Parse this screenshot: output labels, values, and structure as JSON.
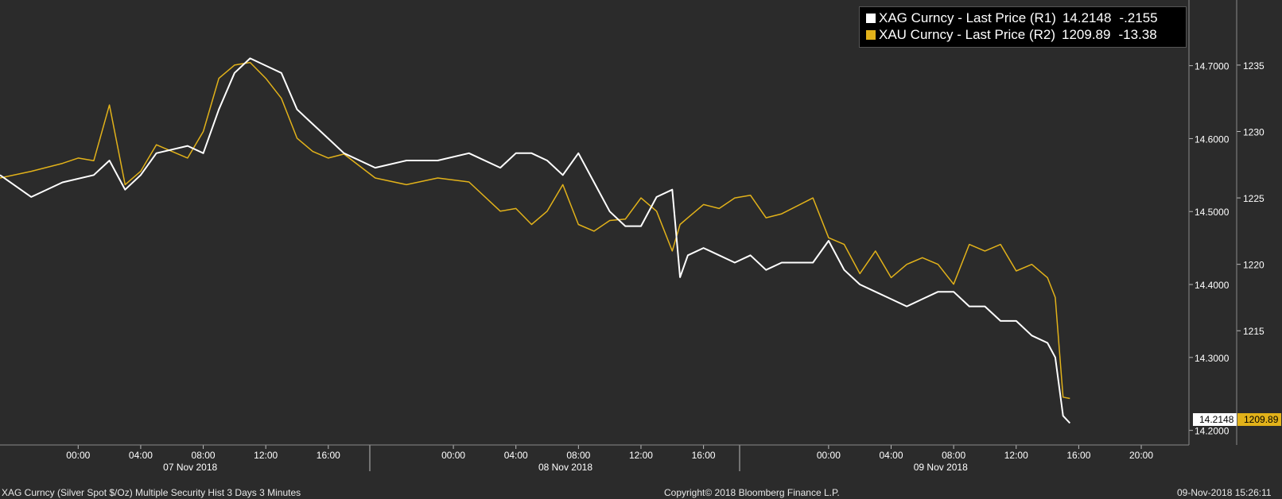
{
  "legend": {
    "series": [
      {
        "name": "XAG Curncy - Last Price (R1)",
        "last": "14.2148",
        "change": "-.2155",
        "color": "#ffffff"
      },
      {
        "name": "XAU Curncy - Last Price (R2)",
        "last": "1209.89",
        "change": "-13.38",
        "color": "#e2b21a"
      }
    ]
  },
  "last_tags": {
    "xag": "14.2148",
    "xau": "1209.89"
  },
  "footer": {
    "left": "XAG Curncy (Silver Spot  $/Oz) Multiple Security Hist   3 Days 3 Minutes",
    "center": "Copyright© 2018 Bloomberg Finance L.P.",
    "right": "09-Nov-2018 15:26:11"
  },
  "chart_data": {
    "type": "line",
    "x_axis": {
      "hour_ticks": [
        "00:00",
        "04:00",
        "08:00",
        "12:00",
        "16:00",
        "00:00",
        "04:00",
        "08:00",
        "12:00",
        "16:00",
        "00:00",
        "04:00",
        "08:00",
        "12:00",
        "16:00",
        "20:00"
      ],
      "date_labels": [
        "07 Nov 2018",
        "08 Nov 2018",
        "09 Nov 2018"
      ],
      "range": [
        "2018-11-06 19:00",
        "2018-11-09 23:00"
      ]
    },
    "axes": {
      "R1": {
        "series": "XAG",
        "ticks": [
          "14.7000",
          "14.6000",
          "14.5000",
          "14.4000",
          "14.3000",
          "14.2000"
        ],
        "ylim": [
          14.18,
          14.79
        ]
      },
      "R2": {
        "series": "XAU",
        "ticks": [
          "1235",
          "1230",
          "1225",
          "1220",
          "1215"
        ],
        "ylim": [
          1206.4,
          1239.9
        ]
      }
    },
    "grid": false,
    "legend_position": "top-right",
    "series": [
      {
        "name": "XAG Curncy - Last Price (R1)",
        "axis": "R1",
        "color": "#ffffff",
        "x": [
          "2018-11-06 19:00",
          "2018-11-06 21:00",
          "2018-11-06 23:00",
          "2018-11-07 01:00",
          "2018-11-07 02:00",
          "2018-11-07 03:00",
          "2018-11-07 04:00",
          "2018-11-07 05:00",
          "2018-11-07 07:00",
          "2018-11-07 08:00",
          "2018-11-07 09:00",
          "2018-11-07 10:00",
          "2018-11-07 11:00",
          "2018-11-07 12:00",
          "2018-11-07 13:00",
          "2018-11-07 14:00",
          "2018-11-07 15:00",
          "2018-11-07 16:00",
          "2018-11-07 17:00",
          "2018-11-07 19:00",
          "2018-11-07 21:00",
          "2018-11-07 23:00",
          "2018-11-08 01:00",
          "2018-11-08 03:00",
          "2018-11-08 04:00",
          "2018-11-08 05:00",
          "2018-11-08 06:00",
          "2018-11-08 07:00",
          "2018-11-08 08:00",
          "2018-11-08 09:00",
          "2018-11-08 10:00",
          "2018-11-08 11:00",
          "2018-11-08 12:00",
          "2018-11-08 13:00",
          "2018-11-08 14:00",
          "2018-11-08 14:30",
          "2018-11-08 15:00",
          "2018-11-08 16:00",
          "2018-11-08 17:00",
          "2018-11-08 18:00",
          "2018-11-08 19:00",
          "2018-11-08 20:00",
          "2018-11-08 21:00",
          "2018-11-08 23:00",
          "2018-11-09 00:00",
          "2018-11-09 01:00",
          "2018-11-09 02:00",
          "2018-11-09 03:00",
          "2018-11-09 04:00",
          "2018-11-09 05:00",
          "2018-11-09 06:00",
          "2018-11-09 07:00",
          "2018-11-09 08:00",
          "2018-11-09 09:00",
          "2018-11-09 10:00",
          "2018-11-09 11:00",
          "2018-11-09 12:00",
          "2018-11-09 13:00",
          "2018-11-09 14:00",
          "2018-11-09 14:30",
          "2018-11-09 15:00",
          "2018-11-09 15:26"
        ],
        "values": [
          14.55,
          14.52,
          14.54,
          14.55,
          14.57,
          14.53,
          14.55,
          14.58,
          14.59,
          14.58,
          14.64,
          14.69,
          14.71,
          14.7,
          14.69,
          14.64,
          14.62,
          14.6,
          14.58,
          14.56,
          14.57,
          14.57,
          14.58,
          14.56,
          14.58,
          14.58,
          14.57,
          14.55,
          14.58,
          14.54,
          14.5,
          14.48,
          14.48,
          14.52,
          14.53,
          14.41,
          14.44,
          14.45,
          14.44,
          14.43,
          14.44,
          14.42,
          14.43,
          14.43,
          14.46,
          14.42,
          14.4,
          14.39,
          14.38,
          14.37,
          14.38,
          14.39,
          14.39,
          14.37,
          14.37,
          14.35,
          14.35,
          14.33,
          14.32,
          14.3,
          14.22,
          14.21
        ]
      },
      {
        "name": "XAU Curncy - Last Price (R2)",
        "axis": "R2",
        "color": "#e2b21a",
        "x": [
          "2018-11-06 19:00",
          "2018-11-06 21:00",
          "2018-11-06 23:00",
          "2018-11-07 00:00",
          "2018-11-07 01:00",
          "2018-11-07 02:00",
          "2018-11-07 03:00",
          "2018-11-07 04:00",
          "2018-11-07 05:00",
          "2018-11-07 07:00",
          "2018-11-07 08:00",
          "2018-11-07 09:00",
          "2018-11-07 10:00",
          "2018-11-07 11:00",
          "2018-11-07 12:00",
          "2018-11-07 13:00",
          "2018-11-07 14:00",
          "2018-11-07 15:00",
          "2018-11-07 16:00",
          "2018-11-07 17:00",
          "2018-11-07 19:00",
          "2018-11-07 21:00",
          "2018-11-07 23:00",
          "2018-11-08 01:00",
          "2018-11-08 03:00",
          "2018-11-08 04:00",
          "2018-11-08 05:00",
          "2018-11-08 06:00",
          "2018-11-08 07:00",
          "2018-11-08 08:00",
          "2018-11-08 09:00",
          "2018-11-08 10:00",
          "2018-11-08 11:00",
          "2018-11-08 12:00",
          "2018-11-08 13:00",
          "2018-11-08 14:00",
          "2018-11-08 14:30",
          "2018-11-08 15:00",
          "2018-11-08 16:00",
          "2018-11-08 17:00",
          "2018-11-08 18:00",
          "2018-11-08 19:00",
          "2018-11-08 20:00",
          "2018-11-08 21:00",
          "2018-11-08 23:00",
          "2018-11-09 00:00",
          "2018-11-09 01:00",
          "2018-11-09 02:00",
          "2018-11-09 03:00",
          "2018-11-09 04:00",
          "2018-11-09 05:00",
          "2018-11-09 06:00",
          "2018-11-09 07:00",
          "2018-11-09 08:00",
          "2018-11-09 09:00",
          "2018-11-09 10:00",
          "2018-11-09 11:00",
          "2018-11-09 12:00",
          "2018-11-09 13:00",
          "2018-11-09 14:00",
          "2018-11-09 14:30",
          "2018-11-09 15:00",
          "2018-11-09 15:26"
        ],
        "values": [
          1226.5,
          1227.0,
          1227.6,
          1228.0,
          1227.8,
          1232.0,
          1226.0,
          1227.0,
          1229.0,
          1228.0,
          1230.0,
          1234.0,
          1235.0,
          1235.2,
          1234.0,
          1232.5,
          1229.5,
          1228.5,
          1228.0,
          1228.3,
          1226.5,
          1226.0,
          1226.5,
          1226.2,
          1224.0,
          1224.2,
          1223.0,
          1224.0,
          1226.0,
          1223.0,
          1222.5,
          1223.3,
          1223.4,
          1225.0,
          1224.0,
          1221.0,
          1223.0,
          1223.5,
          1224.5,
          1224.2,
          1225.0,
          1225.2,
          1223.5,
          1223.8,
          1225.0,
          1222.0,
          1221.5,
          1219.3,
          1221.0,
          1219.0,
          1220.0,
          1220.5,
          1220.0,
          1218.5,
          1221.5,
          1221.0,
          1221.5,
          1219.5,
          1220.0,
          1219.0,
          1217.5,
          1210.0,
          1209.9
        ]
      }
    ]
  }
}
